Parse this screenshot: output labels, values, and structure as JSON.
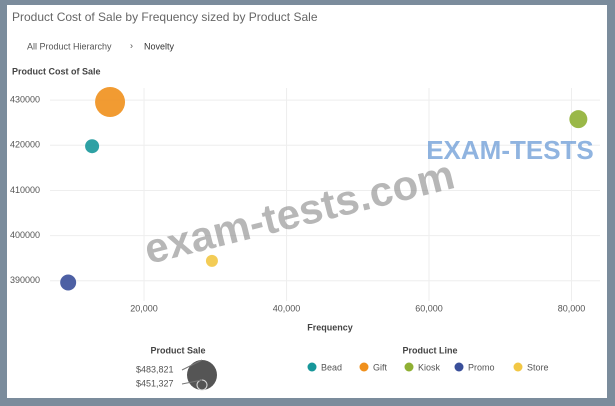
{
  "chart_data": {
    "type": "bubble",
    "title": "Product Cost of Sale by Frequency sized by Product Sale",
    "breadcrumb": [
      "All Product Hierarchy",
      "Novelty"
    ],
    "y_label": "Product Cost of Sale",
    "x_label": "Frequency",
    "xlim": [
      6800,
      84000
    ],
    "ylim": [
      385500,
      432700
    ],
    "xticks": [
      {
        "value": 20000,
        "label": "20,000"
      },
      {
        "value": 40000,
        "label": "40,000"
      },
      {
        "value": 60000,
        "label": "60,000"
      },
      {
        "value": 80000,
        "label": "80,000"
      }
    ],
    "yticks": [
      390000,
      400000,
      410000,
      420000,
      430000
    ],
    "grid": true,
    "legend_title": "Product Line",
    "series": [
      {
        "name": "Bead",
        "color": "#17979a",
        "x": [
          12710
        ],
        "values": [
          419800
        ],
        "sizes": [
          457826
        ]
      },
      {
        "name": "Gift",
        "color": "#f0901c",
        "x": [
          15230
        ],
        "values": [
          429600
        ],
        "sizes": [
          483821
        ]
      },
      {
        "name": "Kiosk",
        "color": "#8fb034",
        "x": [
          80960
        ],
        "values": [
          425800
        ],
        "sizes": [
          464325
        ]
      },
      {
        "name": "Promo",
        "color": "#3a4f9a",
        "x": [
          9350
        ],
        "values": [
          389600
        ],
        "sizes": [
          461075
        ]
      },
      {
        "name": "Store",
        "color": "#f2c744",
        "x": [
          29530
        ],
        "values": [
          394400
        ],
        "sizes": [
          454576
        ]
      }
    ],
    "size_legend": {
      "title": "Product Sale",
      "values": [
        483821,
        451327
      ],
      "value_labels": [
        "$483,821",
        "$451,327"
      ]
    },
    "watermarks": [
      "EXAM-TESTS",
      "exam-tests.com"
    ]
  }
}
